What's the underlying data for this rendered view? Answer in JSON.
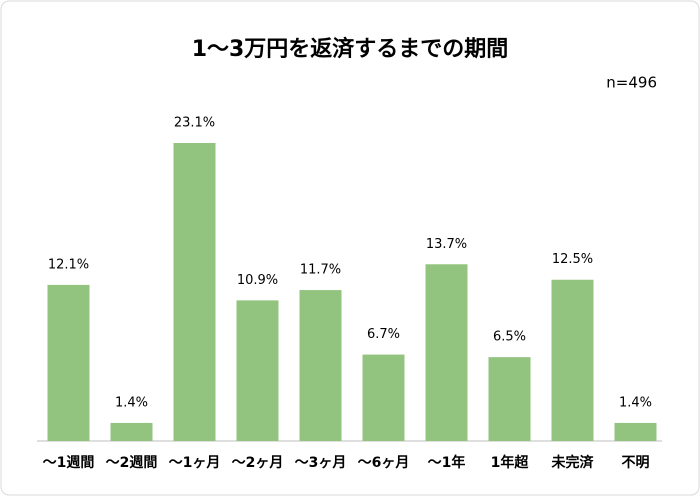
{
  "chart_data": {
    "type": "bar",
    "title": "1～3万円を返済するまでの期間",
    "subtitle": "n=496",
    "categories": [
      "～1週間",
      "～2週間",
      "～1ヶ月",
      "～2ヶ月",
      "～3ヶ月",
      "～6ヶ月",
      "～1年",
      "1年超",
      "未完済",
      "不明"
    ],
    "values": [
      12.1,
      1.4,
      23.1,
      10.9,
      11.7,
      6.7,
      13.7,
      6.5,
      12.5,
      1.4
    ],
    "value_labels": [
      "12.1%",
      "1.4%",
      "23.1%",
      "10.9%",
      "11.7%",
      "6.7%",
      "13.7%",
      "6.5%",
      "12.5%",
      "1.4%"
    ],
    "color": "#92c47f"
  }
}
